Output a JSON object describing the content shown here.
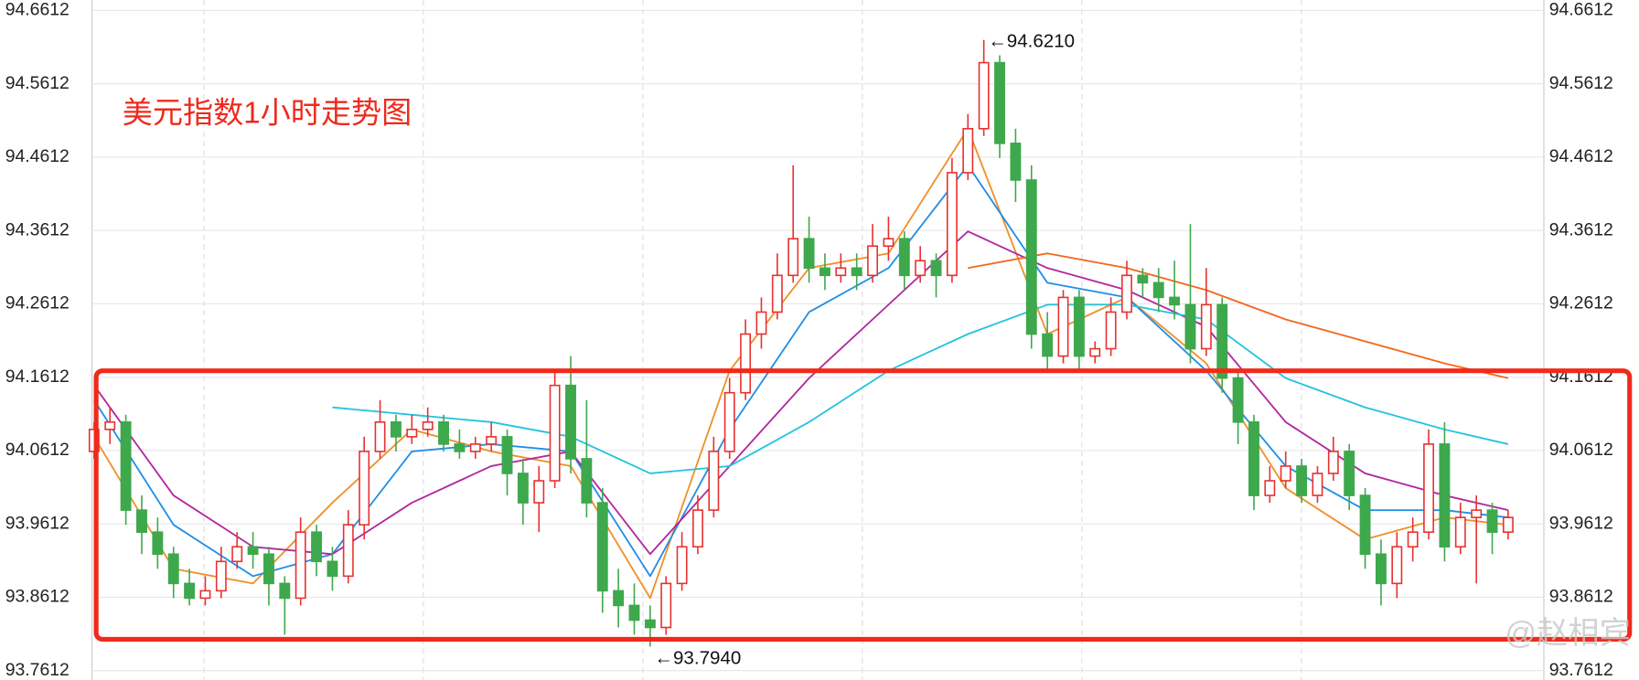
{
  "chart_data": {
    "type": "candlestick",
    "title": "美元指数1小时走势图",
    "watermark": "@赵相宾",
    "annotations": [
      {
        "text": "←94.6210",
        "index": 56,
        "value": 94.621
      },
      {
        "text": "←93.7940",
        "index": 35,
        "value": 93.794
      }
    ],
    "up_color": "#e8312f",
    "down_color": "#3ea84c",
    "ylim": [
      93.7612,
      94.6612
    ],
    "yticks": [
      94.6612,
      94.5612,
      94.4612,
      94.3612,
      94.2612,
      94.1612,
      94.0612,
      93.9612,
      93.8612,
      93.7612
    ],
    "grid": true,
    "candles": [
      [
        94.06,
        94.1,
        94.05,
        94.09
      ],
      [
        94.09,
        94.12,
        94.07,
        94.1
      ],
      [
        94.1,
        94.11,
        93.96,
        93.98
      ],
      [
        93.98,
        94.0,
        93.92,
        93.95
      ],
      [
        93.95,
        93.97,
        93.9,
        93.92
      ],
      [
        93.92,
        93.93,
        93.86,
        93.88
      ],
      [
        93.88,
        93.9,
        93.85,
        93.86
      ],
      [
        93.86,
        93.89,
        93.85,
        93.87
      ],
      [
        93.87,
        93.93,
        93.86,
        93.91
      ],
      [
        93.91,
        93.95,
        93.9,
        93.93
      ],
      [
        93.93,
        93.95,
        93.9,
        93.92
      ],
      [
        93.92,
        93.93,
        93.85,
        93.88
      ],
      [
        93.88,
        93.89,
        93.81,
        93.86
      ],
      [
        93.86,
        93.97,
        93.85,
        93.95
      ],
      [
        93.95,
        93.96,
        93.89,
        93.91
      ],
      [
        93.91,
        93.93,
        93.87,
        93.89
      ],
      [
        93.89,
        93.98,
        93.88,
        93.96
      ],
      [
        93.96,
        94.08,
        93.94,
        94.06
      ],
      [
        94.06,
        94.13,
        94.05,
        94.1
      ],
      [
        94.1,
        94.11,
        94.06,
        94.08
      ],
      [
        94.08,
        94.11,
        94.07,
        94.09
      ],
      [
        94.09,
        94.12,
        94.08,
        94.1
      ],
      [
        94.1,
        94.11,
        94.06,
        94.07
      ],
      [
        94.07,
        94.09,
        94.05,
        94.06
      ],
      [
        94.06,
        94.08,
        94.05,
        94.07
      ],
      [
        94.07,
        94.1,
        94.06,
        94.08
      ],
      [
        94.08,
        94.09,
        94.0,
        94.03
      ],
      [
        94.03,
        94.05,
        93.96,
        93.99
      ],
      [
        93.99,
        94.04,
        93.95,
        94.02
      ],
      [
        94.02,
        94.17,
        94.01,
        94.15
      ],
      [
        94.15,
        94.19,
        94.03,
        94.05
      ],
      [
        94.05,
        94.13,
        93.97,
        93.99
      ],
      [
        93.99,
        94.01,
        93.84,
        93.87
      ],
      [
        93.87,
        93.9,
        93.82,
        93.85
      ],
      [
        93.85,
        93.88,
        93.81,
        93.83
      ],
      [
        93.83,
        93.85,
        93.794,
        93.82
      ],
      [
        93.82,
        93.89,
        93.81,
        93.88
      ],
      [
        93.88,
        93.95,
        93.87,
        93.93
      ],
      [
        93.93,
        94.0,
        93.92,
        93.98
      ],
      [
        93.98,
        94.08,
        93.97,
        94.06
      ],
      [
        94.06,
        94.16,
        94.05,
        94.14
      ],
      [
        94.14,
        94.24,
        94.13,
        94.22
      ],
      [
        94.22,
        94.27,
        94.2,
        94.25
      ],
      [
        94.25,
        94.33,
        94.24,
        94.3
      ],
      [
        94.3,
        94.45,
        94.29,
        94.35
      ],
      [
        94.35,
        94.38,
        94.29,
        94.31
      ],
      [
        94.31,
        94.33,
        94.28,
        94.3
      ],
      [
        94.3,
        94.33,
        94.29,
        94.31
      ],
      [
        94.31,
        94.33,
        94.28,
        94.3
      ],
      [
        94.3,
        94.37,
        94.29,
        94.34
      ],
      [
        94.34,
        94.38,
        94.32,
        94.35
      ],
      [
        94.35,
        94.36,
        94.28,
        94.3
      ],
      [
        94.3,
        94.34,
        94.29,
        94.32
      ],
      [
        94.32,
        94.33,
        94.27,
        94.3
      ],
      [
        94.3,
        94.46,
        94.29,
        94.44
      ],
      [
        94.44,
        94.52,
        94.43,
        94.5
      ],
      [
        94.5,
        94.621,
        94.49,
        94.59
      ],
      [
        94.59,
        94.6,
        94.46,
        94.48
      ],
      [
        94.48,
        94.5,
        94.4,
        94.43
      ],
      [
        94.43,
        94.45,
        94.2,
        94.22
      ],
      [
        94.22,
        94.25,
        94.17,
        94.19
      ],
      [
        94.19,
        94.28,
        94.18,
        94.27
      ],
      [
        94.27,
        94.28,
        94.17,
        94.19
      ],
      [
        94.19,
        94.21,
        94.18,
        94.2
      ],
      [
        94.2,
        94.27,
        94.19,
        94.25
      ],
      [
        94.25,
        94.32,
        94.24,
        94.3
      ],
      [
        94.3,
        94.31,
        94.27,
        94.29
      ],
      [
        94.29,
        94.31,
        94.25,
        94.27
      ],
      [
        94.27,
        94.32,
        94.24,
        94.26
      ],
      [
        94.26,
        94.37,
        94.18,
        94.2
      ],
      [
        94.2,
        94.31,
        94.19,
        94.26
      ],
      [
        94.26,
        94.27,
        94.14,
        94.16
      ],
      [
        94.16,
        94.17,
        94.07,
        94.1
      ],
      [
        94.1,
        94.11,
        93.98,
        94.0
      ],
      [
        94.0,
        94.04,
        93.99,
        94.02
      ],
      [
        94.02,
        94.06,
        94.01,
        94.04
      ],
      [
        94.04,
        94.05,
        93.99,
        94.0
      ],
      [
        94.0,
        94.04,
        93.99,
        94.03
      ],
      [
        94.03,
        94.08,
        94.02,
        94.06
      ],
      [
        94.06,
        94.07,
        93.98,
        94.0
      ],
      [
        94.0,
        94.01,
        93.9,
        93.92
      ],
      [
        93.92,
        93.94,
        93.85,
        93.88
      ],
      [
        93.88,
        93.95,
        93.86,
        93.93
      ],
      [
        93.93,
        93.97,
        93.91,
        93.95
      ],
      [
        93.95,
        94.09,
        93.94,
        94.07
      ],
      [
        94.07,
        94.1,
        93.91,
        93.93
      ],
      [
        93.93,
        93.99,
        93.92,
        93.97
      ],
      [
        93.97,
        94.0,
        93.88,
        93.98
      ],
      [
        93.98,
        93.99,
        93.92,
        93.95
      ],
      [
        93.95,
        93.98,
        93.94,
        93.97
      ]
    ],
    "ma_x": [
      0,
      5,
      10,
      15,
      20,
      25,
      30,
      35,
      40,
      45,
      50,
      55,
      60,
      65,
      70,
      75,
      80,
      85,
      89
    ],
    "series": [
      {
        "color": "#f0902a",
        "values": [
          94.08,
          93.9,
          93.88,
          93.99,
          94.09,
          94.06,
          94.04,
          93.86,
          94.17,
          94.31,
          94.33,
          94.5,
          94.22,
          94.27,
          94.18,
          94.01,
          93.94,
          93.97,
          93.96
        ]
      },
      {
        "color": "#1f8fe8",
        "values": [
          94.13,
          93.96,
          93.89,
          93.92,
          94.06,
          94.07,
          94.06,
          93.89,
          94.09,
          94.25,
          94.31,
          94.45,
          94.29,
          94.27,
          94.17,
          94.04,
          93.98,
          93.98,
          93.97
        ]
      },
      {
        "color": "#b3279f",
        "values": [
          94.15,
          94.0,
          93.93,
          93.92,
          93.99,
          94.04,
          94.06,
          93.92,
          94.04,
          94.16,
          94.26,
          94.36,
          94.31,
          94.28,
          94.23,
          94.1,
          94.03,
          94.0,
          93.98
        ]
      },
      {
        "color": "#22c4df",
        "values": [
          null,
          null,
          null,
          94.12,
          94.11,
          94.1,
          94.08,
          94.03,
          94.04,
          94.1,
          94.17,
          94.22,
          94.26,
          94.26,
          94.24,
          94.16,
          94.12,
          94.09,
          94.07
        ]
      },
      {
        "color": "#f5661a",
        "values": [
          null,
          null,
          null,
          null,
          null,
          null,
          null,
          null,
          null,
          null,
          null,
          94.31,
          94.33,
          94.31,
          94.28,
          94.24,
          94.21,
          94.18,
          94.16
        ]
      }
    ]
  }
}
